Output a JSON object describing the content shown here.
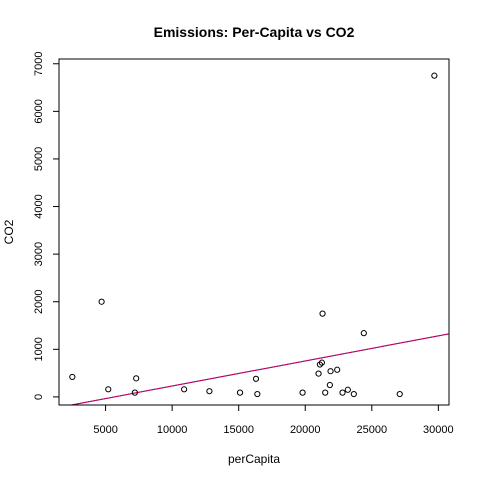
{
  "chart_data": {
    "type": "scatter",
    "title": "Emissions: Per-Capita vs CO2",
    "xlabel": "perCapita",
    "ylabel": "CO2",
    "xlim": [
      1500,
      30800
    ],
    "ylim": [
      -170,
      7100
    ],
    "x_ticks": [
      5000,
      10000,
      15000,
      20000,
      25000,
      30000
    ],
    "y_ticks": [
      0,
      1000,
      2000,
      3000,
      4000,
      5000,
      6000,
      7000
    ],
    "grid": false,
    "points": [
      {
        "x": 2500,
        "y": 420
      },
      {
        "x": 4700,
        "y": 2000
      },
      {
        "x": 5200,
        "y": 160
      },
      {
        "x": 7200,
        "y": 90
      },
      {
        "x": 7300,
        "y": 390
      },
      {
        "x": 10900,
        "y": 160
      },
      {
        "x": 12800,
        "y": 120
      },
      {
        "x": 15100,
        "y": 90
      },
      {
        "x": 16300,
        "y": 380
      },
      {
        "x": 16400,
        "y": 60
      },
      {
        "x": 19800,
        "y": 90
      },
      {
        "x": 21000,
        "y": 490
      },
      {
        "x": 21100,
        "y": 680
      },
      {
        "x": 21250,
        "y": 720
      },
      {
        "x": 21300,
        "y": 1750
      },
      {
        "x": 21500,
        "y": 90
      },
      {
        "x": 21850,
        "y": 250
      },
      {
        "x": 21900,
        "y": 540
      },
      {
        "x": 22400,
        "y": 570
      },
      {
        "x": 22800,
        "y": 90
      },
      {
        "x": 23200,
        "y": 150
      },
      {
        "x": 23650,
        "y": 60
      },
      {
        "x": 24400,
        "y": 1340
      },
      {
        "x": 27100,
        "y": 60
      },
      {
        "x": 29700,
        "y": 6750
      }
    ],
    "regression_lines": [
      {
        "color": "#000000",
        "intercept": -298,
        "slope": 0.0527
      },
      {
        "color": "#cc0077",
        "intercept": -298,
        "slope": 0.0527
      }
    ]
  }
}
